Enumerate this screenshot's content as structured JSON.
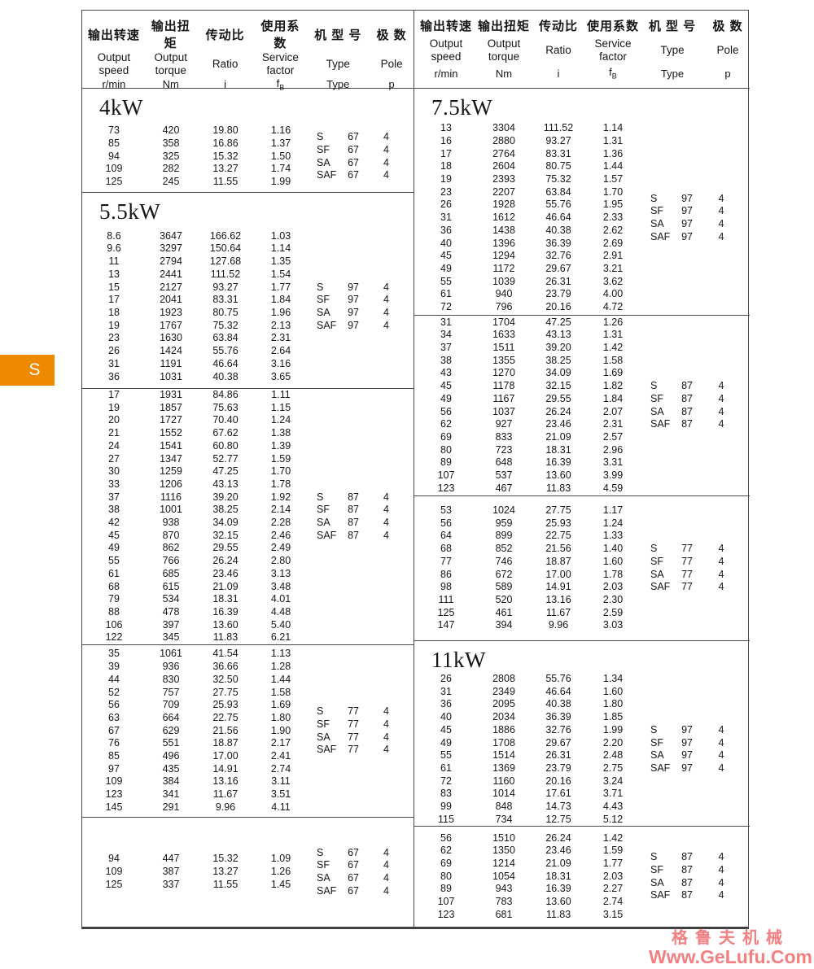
{
  "page": {
    "tab_label": "S"
  },
  "colors": {
    "tab": "#EE8A00",
    "watermark": "#F28080",
    "line": "#4a4a4a"
  },
  "watermark": {
    "line1": "格鲁夫机械",
    "line2": "Www.GeLufu.Com"
  },
  "header": {
    "cn": [
      "输出转速",
      "输出扭矩",
      "传动比",
      "使用系数",
      "机 型 号",
      "极 数"
    ],
    "en": [
      "Output\nspeed",
      "Output\ntorque",
      "Ratio",
      "Service\nfactor",
      "Type",
      "Pole"
    ],
    "units": [
      "r/min",
      "Nm",
      "i",
      "f_B",
      "Type",
      "p"
    ]
  },
  "left": {
    "blocks": [
      {
        "title": "4kW",
        "rows": [
          [
            "73",
            "420",
            "19.80",
            "1.16"
          ],
          [
            "85",
            "358",
            "16.86",
            "1.37"
          ],
          [
            "94",
            "325",
            "15.32",
            "1.50"
          ],
          [
            "109",
            "282",
            "13.27",
            "1.74"
          ],
          [
            "125",
            "245",
            "11.55",
            "1.99"
          ]
        ],
        "types": {
          "models": [
            "S",
            "SF",
            "SA",
            "SAF"
          ],
          "size": "67",
          "pole": "4"
        }
      },
      {
        "title": "5.5kW",
        "rows": [
          [
            "8.6",
            "3647",
            "166.62",
            "1.03"
          ],
          [
            "9.6",
            "3297",
            "150.64",
            "1.14"
          ],
          [
            "11",
            "2794",
            "127.68",
            "1.35"
          ],
          [
            "13",
            "2441",
            "111.52",
            "1.54"
          ],
          [
            "15",
            "2127",
            "93.27",
            "1.77"
          ],
          [
            "17",
            "2041",
            "83.31",
            "1.84"
          ],
          [
            "18",
            "1923",
            "80.75",
            "1.96"
          ],
          [
            "19",
            "1767",
            "75.32",
            "2.13"
          ],
          [
            "23",
            "1630",
            "63.84",
            "2.31"
          ],
          [
            "26",
            "1424",
            "55.76",
            "2.64"
          ],
          [
            "31",
            "1191",
            "46.64",
            "3.16"
          ],
          [
            "36",
            "1031",
            "40.38",
            "3.65"
          ]
        ],
        "types": {
          "models": [
            "S",
            "SF",
            "SA",
            "SAF"
          ],
          "size": "97",
          "pole": "4"
        }
      },
      {
        "rows": [
          [
            "17",
            "1931",
            "84.86",
            "1.11"
          ],
          [
            "19",
            "1857",
            "75.63",
            "1.15"
          ],
          [
            "20",
            "1727",
            "70.40",
            "1.24"
          ],
          [
            "21",
            "1552",
            "67.62",
            "1.38"
          ],
          [
            "24",
            "1541",
            "60.80",
            "1.39"
          ],
          [
            "27",
            "1347",
            "52.77",
            "1.59"
          ],
          [
            "30",
            "1259",
            "47.25",
            "1.70"
          ],
          [
            "33",
            "1206",
            "43.13",
            "1.78"
          ],
          [
            "37",
            "1116",
            "39.20",
            "1.92"
          ],
          [
            "38",
            "1001",
            "38.25",
            "2.14"
          ],
          [
            "42",
            "938",
            "34.09",
            "2.28"
          ],
          [
            "45",
            "870",
            "32.15",
            "2.46"
          ],
          [
            "49",
            "862",
            "29.55",
            "2.49"
          ],
          [
            "55",
            "766",
            "26.24",
            "2.80"
          ],
          [
            "61",
            "685",
            "23.46",
            "3.13"
          ],
          [
            "68",
            "615",
            "21.09",
            "3.48"
          ],
          [
            "79",
            "534",
            "18.31",
            "4.01"
          ],
          [
            "88",
            "478",
            "16.39",
            "4.48"
          ],
          [
            "106",
            "397",
            "13.60",
            "5.40"
          ],
          [
            "122",
            "345",
            "11.83",
            "6.21"
          ]
        ],
        "types": {
          "models": [
            "S",
            "SF",
            "SA",
            "SAF"
          ],
          "size": "87",
          "pole": "4"
        }
      },
      {
        "rows": [
          [
            "35",
            "1061",
            "41.54",
            "1.13"
          ],
          [
            "39",
            "936",
            "36.66",
            "1.28"
          ],
          [
            "44",
            "830",
            "32.50",
            "1.44"
          ],
          [
            "52",
            "757",
            "27.75",
            "1.58"
          ],
          [
            "56",
            "709",
            "25.93",
            "1.69"
          ],
          [
            "63",
            "664",
            "22.75",
            "1.80"
          ],
          [
            "67",
            "629",
            "21.56",
            "1.90"
          ],
          [
            "76",
            "551",
            "18.87",
            "2.17"
          ],
          [
            "85",
            "496",
            "17.00",
            "2.41"
          ],
          [
            "97",
            "435",
            "14.91",
            "2.74"
          ],
          [
            "109",
            "384",
            "13.16",
            "3.11"
          ],
          [
            "123",
            "341",
            "11.67",
            "3.51"
          ],
          [
            "145",
            "291",
            "9.96",
            "4.11"
          ]
        ],
        "types": {
          "models": [
            "S",
            "SF",
            "SA",
            "SAF"
          ],
          "size": "77",
          "pole": "4"
        }
      },
      {
        "rows": [
          [
            "94",
            "447",
            "15.32",
            "1.09"
          ],
          [
            "109",
            "387",
            "13.27",
            "1.26"
          ],
          [
            "125",
            "337",
            "11.55",
            "1.45"
          ]
        ],
        "types": {
          "models": [
            "S",
            "SF",
            "SA",
            "SAF"
          ],
          "size": "67",
          "pole": "4"
        }
      }
    ]
  },
  "right": {
    "blocks": [
      {
        "title": "7.5kW",
        "rows": [
          [
            "13",
            "3304",
            "111.52",
            "1.14"
          ],
          [
            "16",
            "2880",
            "93.27",
            "1.31"
          ],
          [
            "17",
            "2764",
            "83.31",
            "1.36"
          ],
          [
            "18",
            "2604",
            "80.75",
            "1.44"
          ],
          [
            "19",
            "2393",
            "75.32",
            "1.57"
          ],
          [
            "23",
            "2207",
            "63.84",
            "1.70"
          ],
          [
            "26",
            "1928",
            "55.76",
            "1.95"
          ],
          [
            "31",
            "1612",
            "46.64",
            "2.33"
          ],
          [
            "36",
            "1438",
            "40.38",
            "2.62"
          ],
          [
            "40",
            "1396",
            "36.39",
            "2.69"
          ],
          [
            "45",
            "1294",
            "32.76",
            "2.91"
          ],
          [
            "49",
            "1172",
            "29.67",
            "3.21"
          ],
          [
            "55",
            "1039",
            "26.31",
            "3.62"
          ],
          [
            "61",
            "940",
            "23.79",
            "4.00"
          ],
          [
            "72",
            "796",
            "20.16",
            "4.72"
          ]
        ],
        "types": {
          "models": [
            "S",
            "SF",
            "SA",
            "SAF"
          ],
          "size": "97",
          "pole": "4"
        }
      },
      {
        "rows": [
          [
            "31",
            "1704",
            "47.25",
            "1.26"
          ],
          [
            "34",
            "1633",
            "43.13",
            "1.31"
          ],
          [
            "37",
            "1511",
            "39.20",
            "1.42"
          ],
          [
            "38",
            "1355",
            "38.25",
            "1.58"
          ],
          [
            "43",
            "1270",
            "34.09",
            "1.69"
          ],
          [
            "45",
            "1178",
            "32.15",
            "1.82"
          ],
          [
            "49",
            "1167",
            "29.55",
            "1.84"
          ],
          [
            "56",
            "1037",
            "26.24",
            "2.07"
          ],
          [
            "62",
            "927",
            "23.46",
            "2.31"
          ],
          [
            "69",
            "833",
            "21.09",
            "2.57"
          ],
          [
            "80",
            "723",
            "18.31",
            "2.96"
          ],
          [
            "89",
            "648",
            "16.39",
            "3.31"
          ],
          [
            "107",
            "537",
            "13.60",
            "3.99"
          ],
          [
            "123",
            "467",
            "11.83",
            "4.59"
          ]
        ],
        "types": {
          "models": [
            "S",
            "SF",
            "SA",
            "SAF"
          ],
          "size": "87",
          "pole": "4"
        }
      },
      {
        "rows": [
          [
            "53",
            "1024",
            "27.75",
            "1.17"
          ],
          [
            "56",
            "959",
            "25.93",
            "1.24"
          ],
          [
            "64",
            "899",
            "22.75",
            "1.33"
          ],
          [
            "68",
            "852",
            "21.56",
            "1.40"
          ],
          [
            "77",
            "746",
            "18.87",
            "1.60"
          ],
          [
            "86",
            "672",
            "17.00",
            "1.78"
          ],
          [
            "98",
            "589",
            "14.91",
            "2.03"
          ],
          [
            "111",
            "520",
            "13.16",
            "2.30"
          ],
          [
            "125",
            "461",
            "11.67",
            "2.59"
          ],
          [
            "147",
            "394",
            "9.96",
            "3.03"
          ]
        ],
        "types": {
          "models": [
            "S",
            "SF",
            "SA",
            "SAF"
          ],
          "size": "77",
          "pole": "4"
        }
      },
      {
        "title": "11kW",
        "rows": [
          [
            "26",
            "2808",
            "55.76",
            "1.34"
          ],
          [
            "31",
            "2349",
            "46.64",
            "1.60"
          ],
          [
            "36",
            "2095",
            "40.38",
            "1.80"
          ],
          [
            "40",
            "2034",
            "36.39",
            "1.85"
          ],
          [
            "45",
            "1886",
            "32.76",
            "1.99"
          ],
          [
            "49",
            "1708",
            "29.67",
            "2.20"
          ],
          [
            "55",
            "1514",
            "26.31",
            "2.48"
          ],
          [
            "61",
            "1369",
            "23.79",
            "2.75"
          ],
          [
            "72",
            "1160",
            "20.16",
            "3.24"
          ],
          [
            "83",
            "1014",
            "17.61",
            "3.71"
          ],
          [
            "99",
            "848",
            "14.73",
            "4.43"
          ],
          [
            "115",
            "734",
            "12.75",
            "5.12"
          ]
        ],
        "types": {
          "models": [
            "S",
            "SF",
            "SA",
            "SAF"
          ],
          "size": "97",
          "pole": "4"
        }
      },
      {
        "rows": [
          [
            "56",
            "1510",
            "26.24",
            "1.42"
          ],
          [
            "62",
            "1350",
            "23.46",
            "1.59"
          ],
          [
            "69",
            "1214",
            "21.09",
            "1.77"
          ],
          [
            "80",
            "1054",
            "18.31",
            "2.03"
          ],
          [
            "89",
            "943",
            "16.39",
            "2.27"
          ],
          [
            "107",
            "783",
            "13.60",
            "2.74"
          ],
          [
            "123",
            "681",
            "11.83",
            "3.15"
          ]
        ],
        "types": {
          "models": [
            "S",
            "SF",
            "SA",
            "SAF"
          ],
          "size": "87",
          "pole": "4"
        }
      }
    ]
  }
}
